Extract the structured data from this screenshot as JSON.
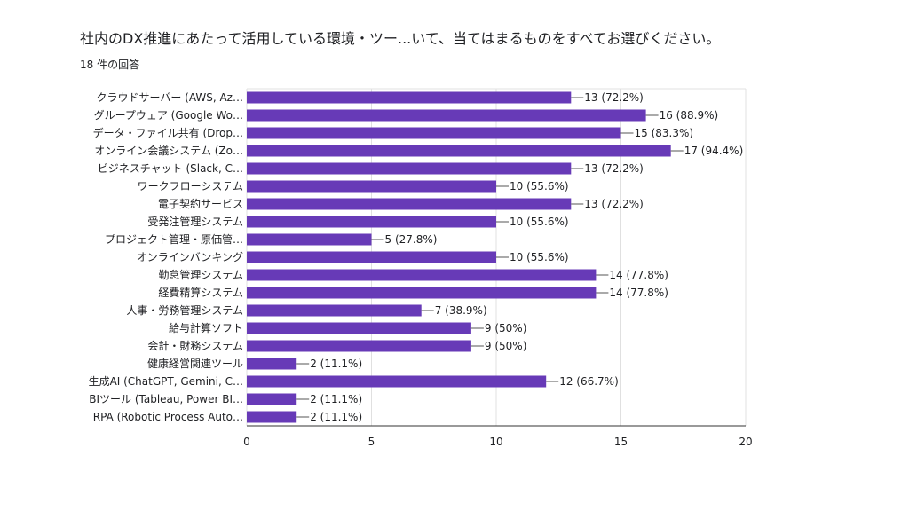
{
  "title": "社内のDX推進にあたって活用している環境・ツー...いて、当てはまるものをすべてお選びください。",
  "response_count": "18 件の回答",
  "colors": {
    "bar": "#673ab7",
    "grid": "#e0e0e0",
    "axis": "#333333"
  },
  "chart_data": {
    "type": "bar",
    "orientation": "horizontal",
    "title": "社内のDX推進にあたって活用している環境・ツー...いて、当てはまるものをすべてお選びください。",
    "xlabel": "",
    "ylabel": "",
    "xlim": [
      0,
      20
    ],
    "xticks": [
      0,
      5,
      10,
      15,
      20
    ],
    "grid": true,
    "categories": [
      "クラウドサーバー (AWS, Az…",
      "グループウェア (Google Wo…",
      "データ・ファイル共有 (Drop…",
      "オンライン会議システム (Zo…",
      "ビジネスチャット (Slack, C…",
      "ワークフローシステム",
      "電子契約サービス",
      "受発注管理システム",
      "プロジェクト管理・原価管…",
      "オンラインバンキング",
      "勤怠管理システム",
      "経費精算システム",
      "人事・労務管理システム",
      "給与計算ソフト",
      "会計・財務システム",
      "健康経営関連ツール",
      "生成AI (ChatGPT, Gemini, C…",
      "BIツール (Tableau, Power BI…",
      "RPA (Robotic Process Auto…"
    ],
    "values": [
      13,
      16,
      15,
      17,
      13,
      10,
      13,
      10,
      5,
      10,
      14,
      14,
      7,
      9,
      9,
      2,
      12,
      2,
      2
    ],
    "labels": [
      "13 (72.2%)",
      "16 (88.9%)",
      "15 (83.3%)",
      "17 (94.4%)",
      "13 (72.2%)",
      "10 (55.6%)",
      "13 (72.2%)",
      "10 (55.6%)",
      "5 (27.8%)",
      "10 (55.6%)",
      "14 (77.8%)",
      "14 (77.8%)",
      "7 (38.9%)",
      "9 (50%)",
      "9 (50%)",
      "2 (11.1%)",
      "12 (66.7%)",
      "2 (11.1%)",
      "2 (11.1%)"
    ]
  }
}
